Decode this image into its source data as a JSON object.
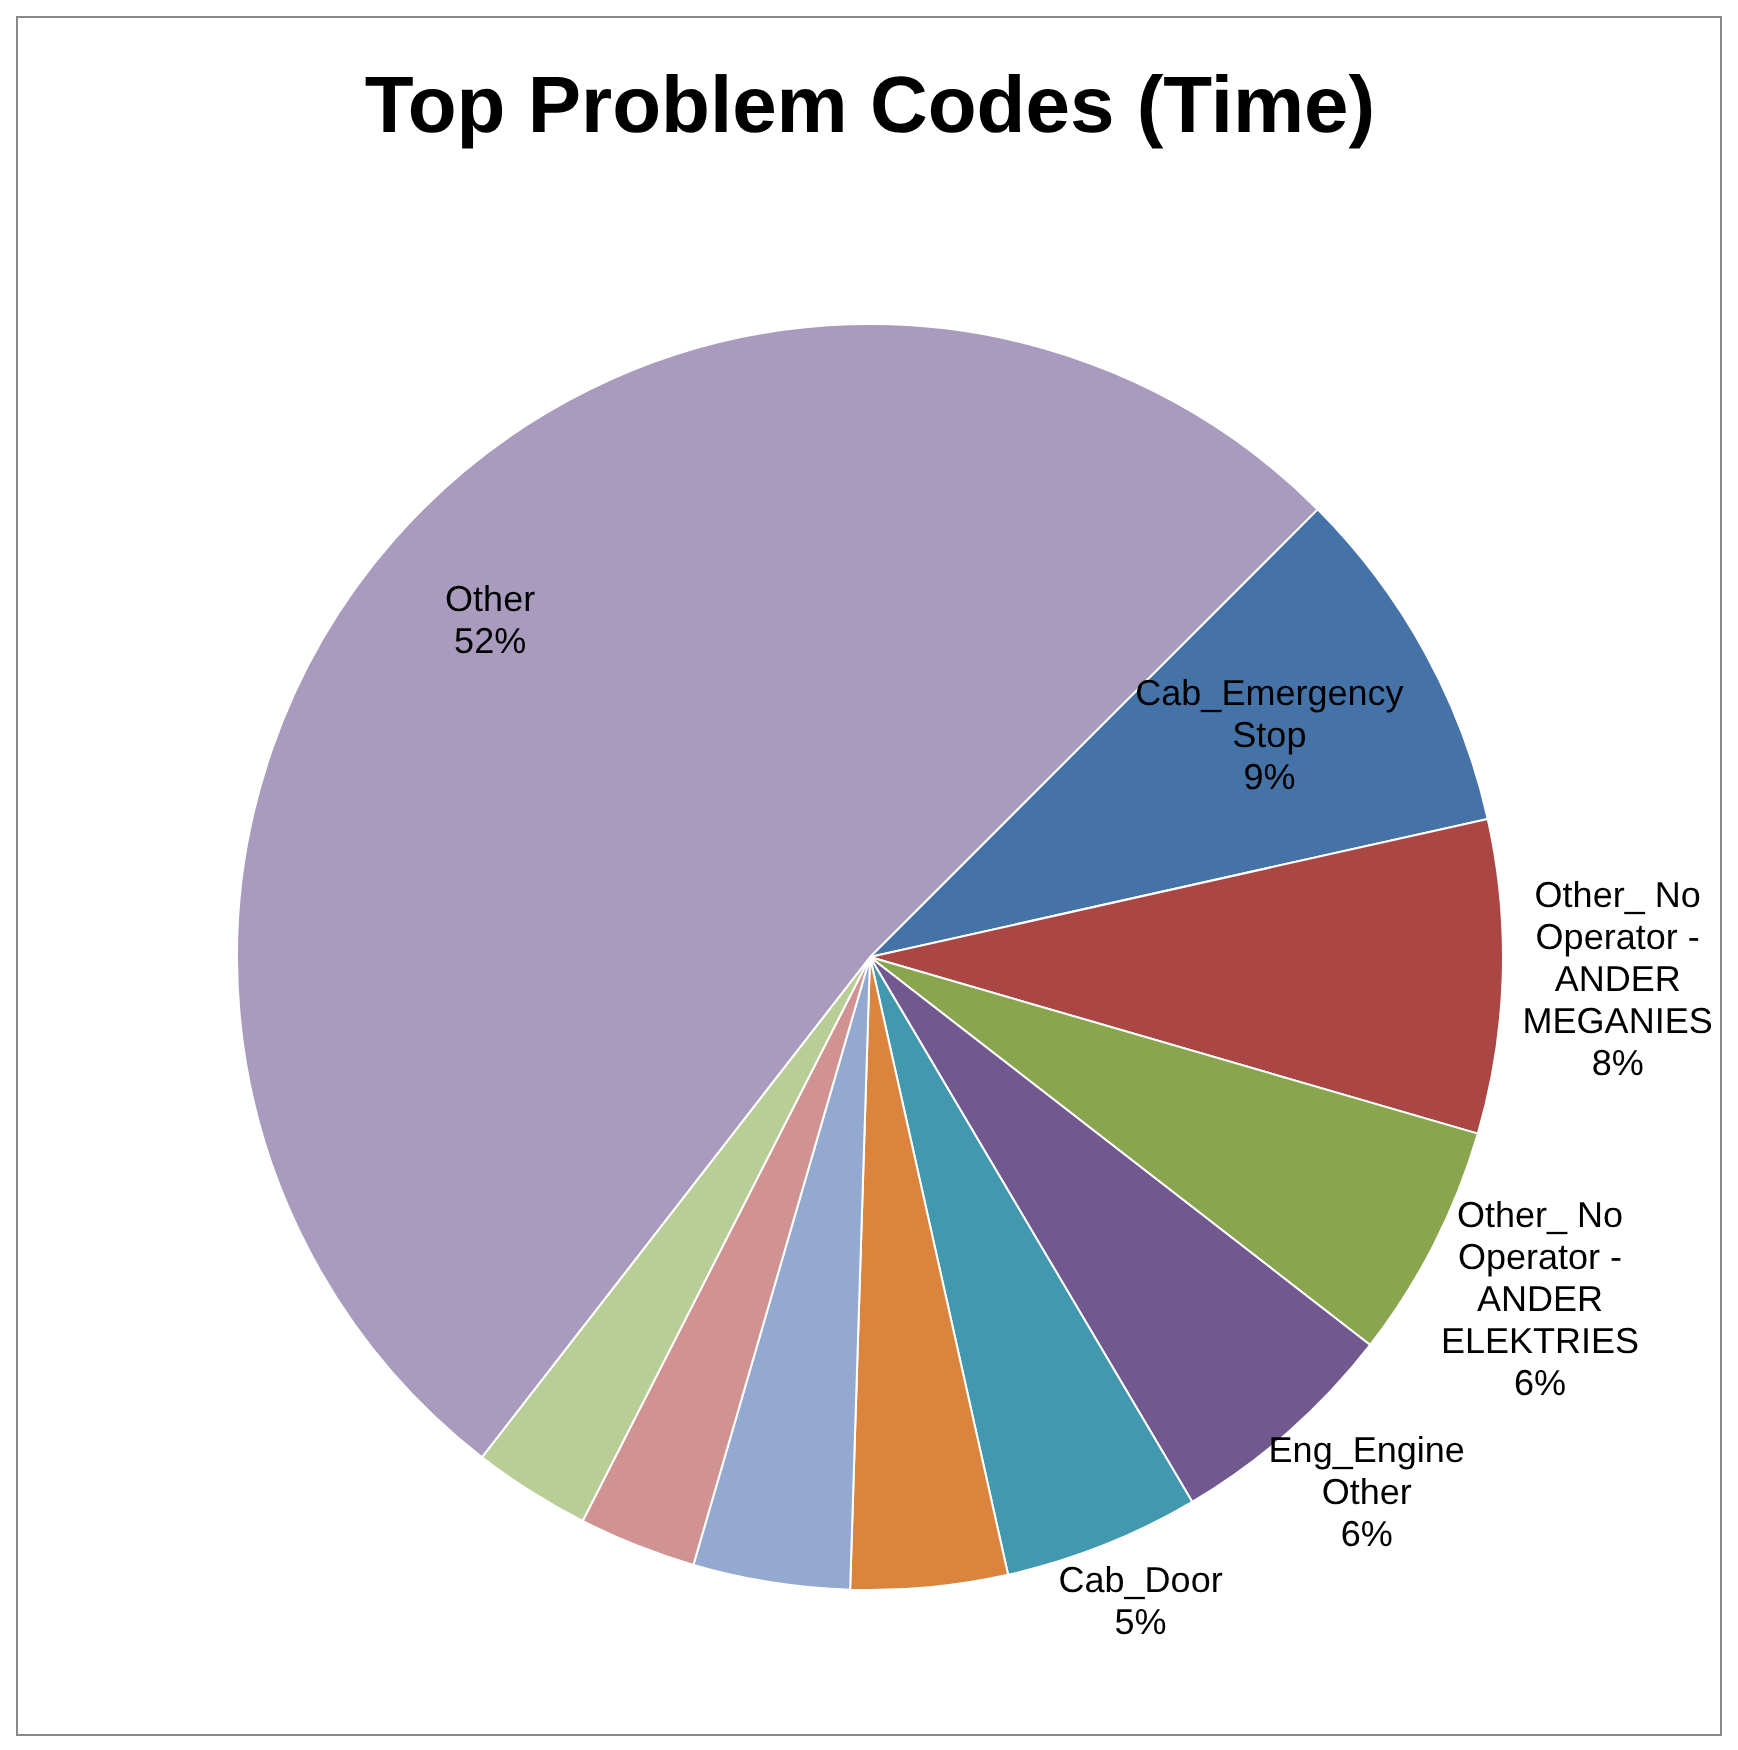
{
  "chart_data": {
    "type": "pie",
    "title": "Top Problem Codes (Time)",
    "categories": [
      "Cab_Emergency Stop",
      "Other_ No Operator - ANDER MEGANIES",
      "Other_ No Operator - ANDER ELEKTRIES",
      "Eng_Engine Other",
      "Cab_Door",
      null,
      null,
      null,
      null,
      "Other"
    ],
    "values": [
      9,
      8,
      6,
      6,
      5,
      4,
      4,
      3,
      3,
      52
    ],
    "value_labels": [
      "9%",
      "8%",
      "6%",
      "6%",
      "5%",
      null,
      null,
      null,
      null,
      "52%"
    ],
    "colors": [
      "#4572a7",
      "#aa4643",
      "#89a54e",
      "#71588f",
      "#4198af",
      "#db843d",
      "#93a9cf",
      "#d19392",
      "#b9cd96",
      "#a99bbd"
    ],
    "legend": false
  }
}
